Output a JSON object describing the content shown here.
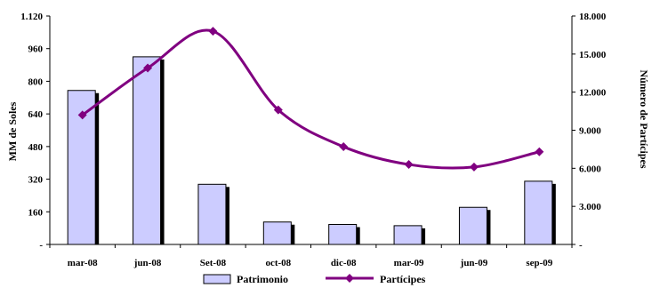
{
  "chart_data": {
    "type": "bar+line",
    "categories": [
      "mar-08",
      "jun-08",
      "Set-08",
      "oct-08",
      "dic-08",
      "mar-09",
      "jun-09",
      "sep-09"
    ],
    "series": [
      {
        "name": "Patrimonio",
        "type": "bar",
        "axis": "left",
        "color": "#ccccff",
        "values": [
          755,
          920,
          295,
          110,
          98,
          92,
          182,
          310
        ]
      },
      {
        "name": "Partícipes",
        "type": "line",
        "axis": "right",
        "color": "#800080",
        "values": [
          10200,
          13900,
          16800,
          10600,
          7700,
          6300,
          6100,
          7300
        ]
      }
    ],
    "ylabel": "MM de Soles",
    "y2label": "Número de Partícipes",
    "ylim": [
      0,
      1120
    ],
    "y2lim": [
      0,
      18000
    ],
    "yticks": [
      "-",
      "160",
      "320",
      "480",
      "640",
      "800",
      "960",
      "1.120"
    ],
    "y2ticks": [
      "-",
      "3.000",
      "6.000",
      "9.000",
      "12.000",
      "15.000",
      "18.000"
    ],
    "legend_position": "bottom",
    "grid": false
  }
}
